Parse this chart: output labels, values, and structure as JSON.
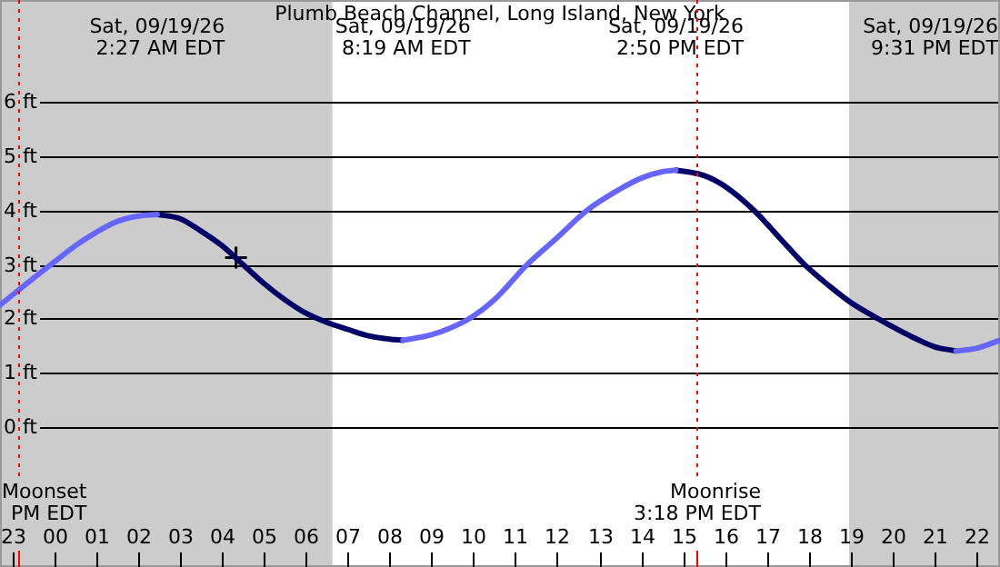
{
  "chart_data": {
    "type": "line",
    "title": "Plumb Beach Channel, Long Island, New York",
    "x": [
      "--09-18T22:42",
      "--09-18T23:30",
      "--09-19T00:00",
      "--09-19T00:30",
      "--09-19T01:00",
      "--09-19T01:30",
      "--09-19T02:00",
      "--09-19T02:27",
      "--09-19T03:00",
      "--09-19T03:30",
      "--09-19T04:00",
      "--09-19T04:30",
      "--09-19T05:00",
      "--09-19T05:30",
      "--09-19T06:00",
      "--09-19T06:30",
      "--09-19T07:00",
      "--09-19T07:30",
      "--09-19T08:00",
      "--09-19T08:19",
      "--09-19T09:00",
      "--09-19T09:54",
      "--09-19T10:30",
      "--09-19T11:17",
      "--09-19T12:00",
      "--09-19T12:42",
      "--09-19T13:30",
      "--09-19T14:00",
      "--09-19T14:30",
      "--09-19T14:50",
      "--09-19T15:30",
      "--09-19T16:00",
      "--09-19T16:42",
      "--09-19T17:18",
      "--09-19T17:54",
      "--09-19T18:30",
      "--09-19T19:00",
      "--09-19T19:39",
      "--09-19T20:30",
      "--09-19T21:00",
      "--09-19T21:31",
      "--09-19T22:00",
      "--09-19T22:34"
    ],
    "series": [
      {
        "color": "#6666ff",
        "values": [
          2.25,
          2.75,
          3.05,
          3.35,
          3.6,
          3.8,
          3.9,
          3.93,
          null,
          null,
          null,
          null,
          null,
          null,
          null,
          null,
          null,
          null,
          null,
          1.6,
          1.7,
          2.0,
          2.35,
          3.0,
          3.5,
          4.0,
          4.4,
          4.6,
          4.72,
          4.75,
          null,
          null,
          null,
          null,
          null,
          null,
          null,
          null,
          null,
          null,
          1.4,
          1.45,
          1.6
        ]
      },
      {
        "color": "#000066",
        "values": [
          null,
          null,
          null,
          null,
          null,
          null,
          null,
          3.93,
          3.85,
          3.62,
          3.35,
          3.0,
          2.65,
          2.35,
          2.1,
          1.93,
          1.8,
          1.68,
          1.62,
          1.6,
          null,
          null,
          null,
          null,
          null,
          null,
          null,
          null,
          null,
          4.75,
          4.65,
          4.45,
          4.0,
          3.5,
          3.0,
          2.6,
          2.3,
          2.0,
          1.65,
          1.48,
          1.4,
          null,
          null
        ]
      },
      {
        "type": "scatter",
        "marker": "cross",
        "color": "#000000",
        "x": [
          "--09-19T04:20"
        ],
        "values": [
          3.13
        ]
      }
    ],
    "xlim": [
      "--09-18T22:42",
      "--09-19T22:34"
    ],
    "ylim": [
      -2.6,
      7.9
    ],
    "xticks": [
      {
        "value": "--09-18T23:00",
        "label": "23"
      },
      {
        "value": "--09-19T00:00",
        "label": "00"
      },
      {
        "value": "--09-19T01:00",
        "label": "01"
      },
      {
        "value": "--09-19T02:00",
        "label": "02"
      },
      {
        "value": "--09-19T03:00",
        "label": "03"
      },
      {
        "value": "--09-19T04:00",
        "label": "04"
      },
      {
        "value": "--09-19T05:00",
        "label": "05"
      },
      {
        "value": "--09-19T06:00",
        "label": "06"
      },
      {
        "value": "--09-19T07:00",
        "label": "07"
      },
      {
        "value": "--09-19T08:00",
        "label": "08"
      },
      {
        "value": "--09-19T09:00",
        "label": "09"
      },
      {
        "value": "--09-19T10:00",
        "label": "10"
      },
      {
        "value": "--09-19T11:00",
        "label": "11"
      },
      {
        "value": "--09-19T12:00",
        "label": "12"
      },
      {
        "value": "--09-19T13:00",
        "label": "13"
      },
      {
        "value": "--09-19T14:00",
        "label": "14"
      },
      {
        "value": "--09-19T15:00",
        "label": "15"
      },
      {
        "value": "--09-19T16:00",
        "label": "16"
      },
      {
        "value": "--09-19T17:00",
        "label": "17"
      },
      {
        "value": "--09-19T18:00",
        "label": "18"
      },
      {
        "value": "--09-19T19:00",
        "label": "19"
      },
      {
        "value": "--09-19T20:00",
        "label": "20"
      },
      {
        "value": "--09-19T21:00",
        "label": "21"
      },
      {
        "value": "--09-19T22:00",
        "label": "22"
      }
    ],
    "yticks": [
      {
        "value": 0,
        "label": "0 ft"
      },
      {
        "value": 1,
        "label": "1 ft"
      },
      {
        "value": 2,
        "label": "2 ft"
      },
      {
        "value": 3,
        "label": "3 ft"
      },
      {
        "value": 4,
        "label": "4 ft"
      },
      {
        "value": 5,
        "label": "5 ft"
      },
      {
        "value": 6,
        "label": "6 ft"
      }
    ],
    "grid": "y",
    "marker": "none",
    "line_style": "solid",
    "legend": false,
    "bands": [
      {
        "axis": "x",
        "from": "--09-18T22:42",
        "to": "--09-19T06:38",
        "color": "#cccccc"
      },
      {
        "axis": "x",
        "from": "--09-19T18:58",
        "to": "--09-19T22:34",
        "color": "#cccccc"
      }
    ],
    "ref_lines": [
      {
        "axis": "x",
        "value": "--09-18T23:08",
        "label": "Moonset\nPM EDT",
        "color": "#ff0000",
        "line_style": "dotted"
      },
      {
        "axis": "x",
        "value": "--09-19T15:18",
        "label": "Moonrise\n3:18 PM EDT",
        "color": "#ff0000",
        "line_style": "dotted"
      }
    ],
    "annotations": [
      "Sat, 09/19/26\n2:27 AM EDT",
      "Sat, 09/19/26\n8:19 AM EDT",
      "Sat, 09/19/26\n2:50 PM EDT",
      "Sat, 09/19/26\n9:31 PM EDT"
    ]
  }
}
